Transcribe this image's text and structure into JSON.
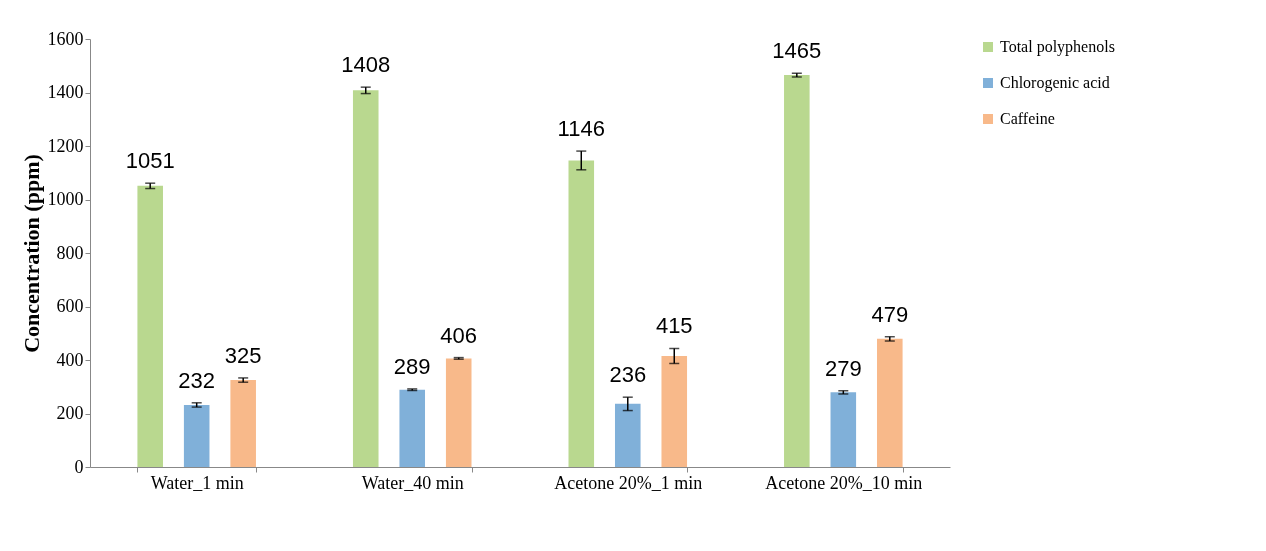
{
  "chart_data": {
    "type": "bar",
    "ylabel": "Concentration (ppm)",
    "categories": [
      "Water_1 min",
      "Water_40 min",
      "Acetone 20%_1 min",
      "Acetone 20%_10 min"
    ],
    "series": [
      {
        "name": "Total polyphenols",
        "color": "#b9d88f",
        "values": [
          1051,
          1408,
          1146,
          1465
        ],
        "errors": [
          10,
          12,
          35,
          7
        ]
      },
      {
        "name": "Chlorogenic acid",
        "color": "#80b0d9",
        "values": [
          232,
          289,
          236,
          279
        ],
        "errors": [
          8,
          3,
          25,
          6
        ]
      },
      {
        "name": "Caffeine",
        "color": "#f8b98a",
        "values": [
          325,
          406,
          415,
          479
        ],
        "errors": [
          8,
          3,
          28,
          8
        ]
      }
    ],
    "ylim": [
      0,
      1600
    ],
    "yticks": [
      0,
      200,
      400,
      600,
      800,
      1000,
      1200,
      1400,
      1600
    ],
    "data_labels": true,
    "legend": "right",
    "grid": false
  }
}
